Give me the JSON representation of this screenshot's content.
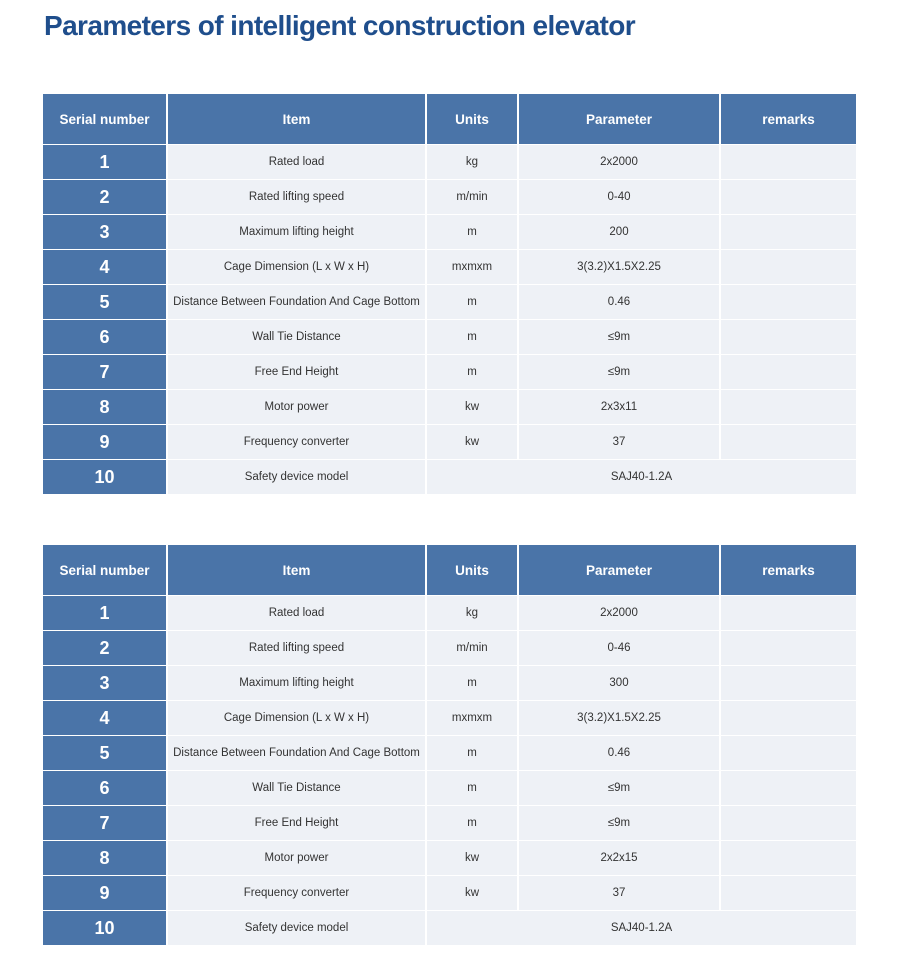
{
  "title": "Parameters of intelligent construction elevator",
  "colors": {
    "title": "#1f4e8c",
    "header_bg": "#4a74a8",
    "row_bg": "#eef1f6"
  },
  "headers": [
    "Serial number",
    "Item",
    "Units",
    "Parameter",
    "remarks"
  ],
  "tables": [
    {
      "rows": [
        {
          "serial": "1",
          "item": "Rated load",
          "units": "kg",
          "parameter": "2x2000",
          "remarks": ""
        },
        {
          "serial": "2",
          "item": "Rated lifting speed",
          "units": "m/min",
          "parameter": "0-40",
          "remarks": ""
        },
        {
          "serial": "3",
          "item": "Maximum lifting height",
          "units": "m",
          "parameter": "200",
          "remarks": ""
        },
        {
          "serial": "4",
          "item": "Cage Dimension (L x W x H)",
          "units": "mxmxm",
          "parameter": "3(3.2)X1.5X2.25",
          "remarks": ""
        },
        {
          "serial": "5",
          "item": "Distance Between Foundation And Cage Bottom",
          "units": "m",
          "parameter": "0.46",
          "remarks": ""
        },
        {
          "serial": "6",
          "item": "Wall Tie Distance",
          "units": "m",
          "parameter": "≤9m",
          "remarks": ""
        },
        {
          "serial": "7",
          "item": "Free End Height",
          "units": "m",
          "parameter": "≤9m",
          "remarks": ""
        },
        {
          "serial": "8",
          "item": "Motor power",
          "units": "kw",
          "parameter": "2x3x11",
          "remarks": ""
        },
        {
          "serial": "9",
          "item": "Frequency converter",
          "units": "kw",
          "parameter": "37",
          "remarks": ""
        },
        {
          "serial": "10",
          "item": "Safety device model",
          "merged": "SAJ40-1.2A"
        }
      ]
    },
    {
      "rows": [
        {
          "serial": "1",
          "item": "Rated load",
          "units": "kg",
          "parameter": "2x2000",
          "remarks": ""
        },
        {
          "serial": "2",
          "item": "Rated lifting speed",
          "units": "m/min",
          "parameter": "0-46",
          "remarks": ""
        },
        {
          "serial": "3",
          "item": "Maximum lifting height",
          "units": "m",
          "parameter": "300",
          "remarks": ""
        },
        {
          "serial": "4",
          "item": "Cage Dimension (L x W x H)",
          "units": "mxmxm",
          "parameter": "3(3.2)X1.5X2.25",
          "remarks": ""
        },
        {
          "serial": "5",
          "item": "Distance Between Foundation And Cage Bottom",
          "units": "m",
          "parameter": "0.46",
          "remarks": ""
        },
        {
          "serial": "6",
          "item": "Wall Tie Distance",
          "units": "m",
          "parameter": "≤9m",
          "remarks": ""
        },
        {
          "serial": "7",
          "item": "Free End Height",
          "units": "m",
          "parameter": "≤9m",
          "remarks": ""
        },
        {
          "serial": "8",
          "item": "Motor power",
          "units": "kw",
          "parameter": "2x2x15",
          "remarks": ""
        },
        {
          "serial": "9",
          "item": "Frequency converter",
          "units": "kw",
          "parameter": "37",
          "remarks": ""
        },
        {
          "serial": "10",
          "item": "Safety device model",
          "merged": "SAJ40-1.2A"
        }
      ]
    }
  ]
}
